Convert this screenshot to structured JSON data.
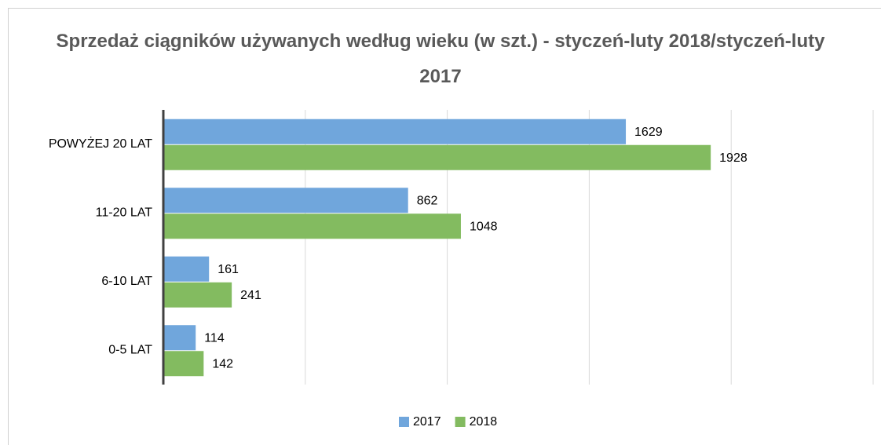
{
  "chart_data": {
    "type": "hbar",
    "title": "Sprzedaż ciągników używanych według wieku (w szt.) - styczeń-luty 2018/styczeń-luty 2017",
    "categories": [
      "POWYŻEJ 20 LAT",
      "11-20 LAT",
      "6-10 LAT",
      "0-5 LAT"
    ],
    "series": [
      {
        "name": "2017",
        "color": "#70a6dc",
        "values": [
          1629,
          862,
          161,
          114
        ]
      },
      {
        "name": "2018",
        "color": "#83bb60",
        "values": [
          1928,
          1048,
          241,
          142
        ]
      }
    ],
    "xlim": [
      0,
      2500
    ],
    "xticks": [
      0,
      500,
      1000,
      1500,
      2000,
      2500
    ],
    "grid": true,
    "legend": "bottom"
  }
}
